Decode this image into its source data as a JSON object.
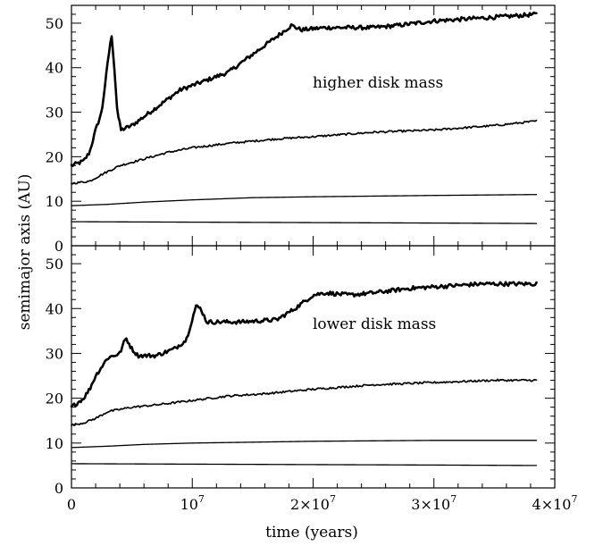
{
  "chart_data": {
    "type": "line",
    "xlabel": "time (years)",
    "ylabel": "semimajor axis (AU)",
    "shared_x": true,
    "xlim": [
      0,
      40000000
    ],
    "x_ticks": [
      {
        "value": 0,
        "mantissa": "0",
        "power": ""
      },
      {
        "value": 10000000,
        "mantissa": "10",
        "power": "7"
      },
      {
        "value": 20000000,
        "mantissa": "2×10",
        "power": "7"
      },
      {
        "value": 30000000,
        "mantissa": "3×10",
        "power": "7"
      },
      {
        "value": 40000000,
        "mantissa": "4×10",
        "power": "7"
      }
    ],
    "panels": [
      {
        "annotation": "higher disk mass",
        "ylim": [
          0,
          54
        ],
        "y_ticks": [
          "0",
          "10",
          "20",
          "30",
          "40",
          "50"
        ],
        "series": [
          {
            "stroke_width": 2.6,
            "noise": 0.45,
            "points": [
              [
                0,
                18
              ],
              [
                1000000,
                19
              ],
              [
                1500000,
                21
              ],
              [
                2000000,
                26
              ],
              [
                2500000,
                30
              ],
              [
                3000000,
                41
              ],
              [
                3300000,
                47.5
              ],
              [
                3500000,
                42
              ],
              [
                3800000,
                30
              ],
              [
                4100000,
                26
              ],
              [
                5000000,
                27
              ],
              [
                7000000,
                31
              ],
              [
                9000000,
                35
              ],
              [
                11000000,
                37
              ],
              [
                13000000,
                39
              ],
              [
                15000000,
                43
              ],
              [
                17000000,
                47
              ],
              [
                18200000,
                49.5
              ],
              [
                19000000,
                48.5
              ],
              [
                21000000,
                49
              ],
              [
                23000000,
                49
              ],
              [
                25000000,
                49
              ],
              [
                27000000,
                49.5
              ],
              [
                30000000,
                50.5
              ],
              [
                33000000,
                51
              ],
              [
                36000000,
                51.5
              ],
              [
                38500000,
                52
              ]
            ]
          },
          {
            "stroke_width": 1.7,
            "noise": 0.22,
            "points": [
              [
                0,
                14
              ],
              [
                1500000,
                14.5
              ],
              [
                2500000,
                16
              ],
              [
                4000000,
                18
              ],
              [
                6000000,
                19.5
              ],
              [
                8000000,
                21
              ],
              [
                10000000,
                22
              ],
              [
                13000000,
                23
              ],
              [
                17000000,
                24
              ],
              [
                20000000,
                24.5
              ],
              [
                25000000,
                25.5
              ],
              [
                30000000,
                26
              ],
              [
                35000000,
                27
              ],
              [
                38500000,
                28
              ]
            ]
          },
          {
            "stroke_width": 1.3,
            "noise": 0.0,
            "points": [
              [
                0,
                9
              ],
              [
                3000000,
                9.3
              ],
              [
                6000000,
                9.8
              ],
              [
                10000000,
                10.3
              ],
              [
                15000000,
                10.8
              ],
              [
                20000000,
                11
              ],
              [
                30000000,
                11.3
              ],
              [
                38500000,
                11.5
              ]
            ]
          },
          {
            "stroke_width": 1.3,
            "noise": 0.0,
            "points": [
              [
                0,
                5.4
              ],
              [
                10000000,
                5.3
              ],
              [
                20000000,
                5.2
              ],
              [
                30000000,
                5.1
              ],
              [
                38500000,
                5.0
              ]
            ]
          }
        ]
      },
      {
        "annotation": "lower disk mass",
        "ylim": [
          0,
          54
        ],
        "y_ticks": [
          "0",
          "10",
          "20",
          "30",
          "40",
          "50"
        ],
        "series": [
          {
            "stroke_width": 2.6,
            "noise": 0.45,
            "points": [
              [
                0,
                18
              ],
              [
                1000000,
                20
              ],
              [
                1500000,
                22
              ],
              [
                2000000,
                25
              ],
              [
                3000000,
                29
              ],
              [
                4000000,
                30
              ],
              [
                4500000,
                33.5
              ],
              [
                5000000,
                31
              ],
              [
                5500000,
                29.5
              ],
              [
                7000000,
                29.5
              ],
              [
                8500000,
                31
              ],
              [
                9500000,
                33
              ],
              [
                10300000,
                40.5
              ],
              [
                10700000,
                40
              ],
              [
                11200000,
                37
              ],
              [
                12000000,
                37
              ],
              [
                14000000,
                37
              ],
              [
                17000000,
                37.5
              ],
              [
                18500000,
                40
              ],
              [
                20000000,
                43
              ],
              [
                21000000,
                43.5
              ],
              [
                23000000,
                43
              ],
              [
                25000000,
                43.5
              ],
              [
                28000000,
                44.5
              ],
              [
                31000000,
                45
              ],
              [
                34000000,
                45.5
              ],
              [
                36000000,
                45.5
              ],
              [
                38500000,
                45.5
              ]
            ]
          },
          {
            "stroke_width": 1.7,
            "noise": 0.22,
            "points": [
              [
                0,
                14
              ],
              [
                1000000,
                14.5
              ],
              [
                2000000,
                15.5
              ],
              [
                3000000,
                17
              ],
              [
                5000000,
                18
              ],
              [
                7000000,
                18.5
              ],
              [
                10000000,
                19.5
              ],
              [
                13000000,
                20.5
              ],
              [
                16000000,
                21
              ],
              [
                20000000,
                22
              ],
              [
                25000000,
                23
              ],
              [
                30000000,
                23.5
              ],
              [
                35000000,
                24
              ],
              [
                38500000,
                24
              ]
            ]
          },
          {
            "stroke_width": 1.3,
            "noise": 0.0,
            "points": [
              [
                0,
                9
              ],
              [
                3000000,
                9.3
              ],
              [
                6000000,
                9.7
              ],
              [
                10000000,
                10
              ],
              [
                15000000,
                10.2
              ],
              [
                20000000,
                10.4
              ],
              [
                30000000,
                10.6
              ],
              [
                38500000,
                10.6
              ]
            ]
          },
          {
            "stroke_width": 1.3,
            "noise": 0.0,
            "points": [
              [
                0,
                5.4
              ],
              [
                10000000,
                5.3
              ],
              [
                20000000,
                5.2
              ],
              [
                30000000,
                5.1
              ],
              [
                38500000,
                5.0
              ]
            ]
          }
        ]
      }
    ]
  }
}
